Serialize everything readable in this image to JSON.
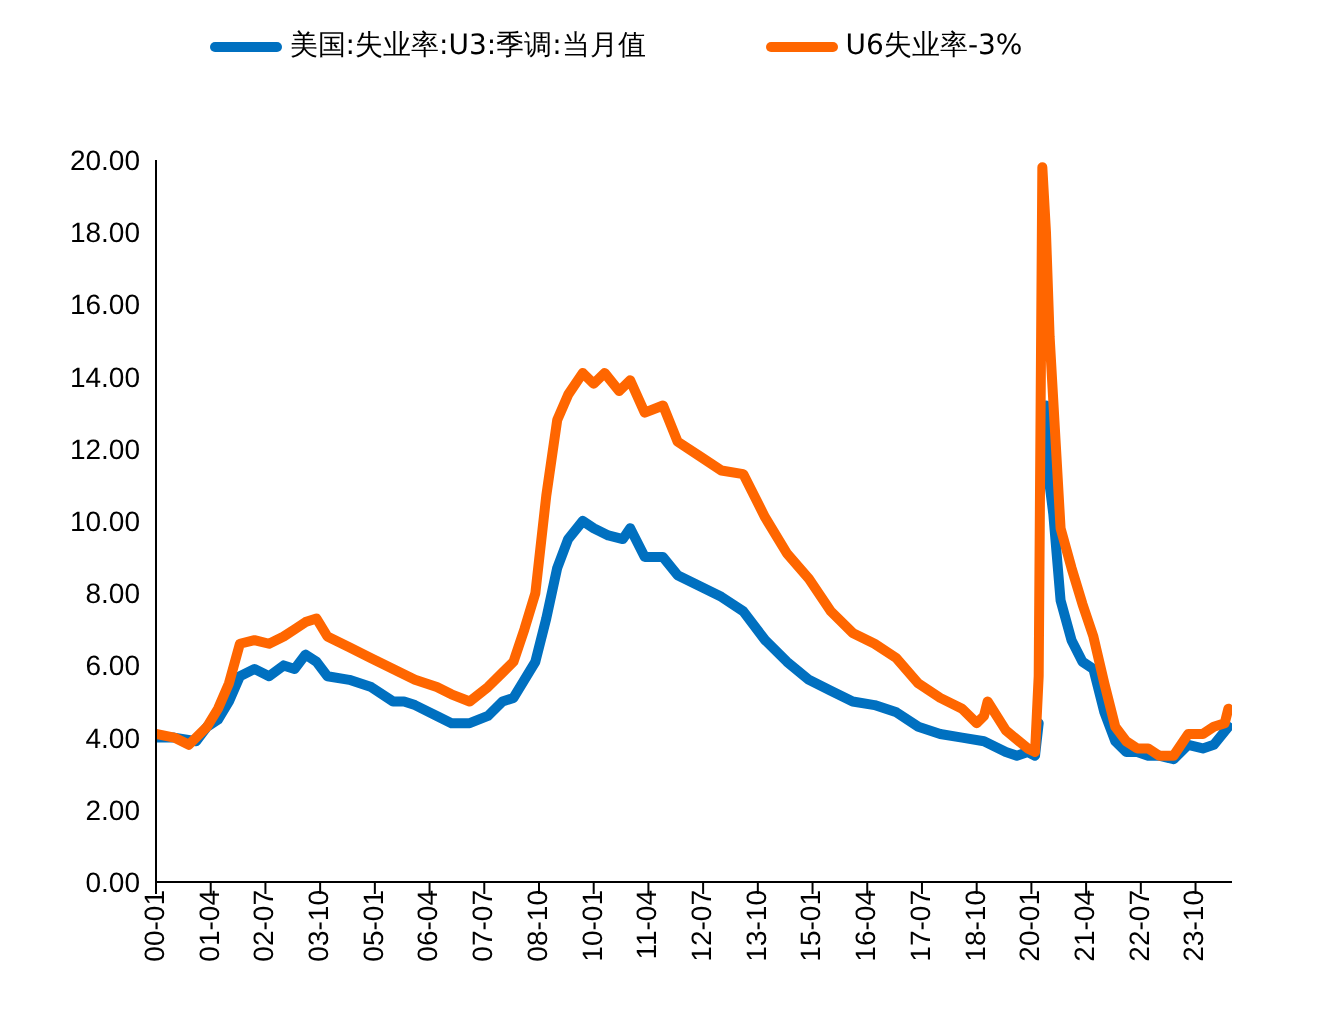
{
  "chart_data": {
    "type": "line",
    "legend": "top",
    "grid": false,
    "marker": "none",
    "line_style": "solid",
    "xlim": [
      "2000-01",
      "2024-08"
    ],
    "xticks": [
      {
        "value": "2000-01",
        "label": "00-01"
      },
      {
        "value": "2001-04",
        "label": "01-04"
      },
      {
        "value": "2002-07",
        "label": "02-07"
      },
      {
        "value": "2003-10",
        "label": "03-10"
      },
      {
        "value": "2005-01",
        "label": "05-01"
      },
      {
        "value": "2006-04",
        "label": "06-04"
      },
      {
        "value": "2007-07",
        "label": "07-07"
      },
      {
        "value": "2008-10",
        "label": "08-10"
      },
      {
        "value": "2010-01",
        "label": "10-01"
      },
      {
        "value": "2011-04",
        "label": "11-04"
      },
      {
        "value": "2012-07",
        "label": "12-07"
      },
      {
        "value": "2013-10",
        "label": "13-10"
      },
      {
        "value": "2015-01",
        "label": "15-01"
      },
      {
        "value": "2016-04",
        "label": "16-04"
      },
      {
        "value": "2017-07",
        "label": "17-07"
      },
      {
        "value": "2018-10",
        "label": "18-10"
      },
      {
        "value": "2020-01",
        "label": "20-01"
      },
      {
        "value": "2021-04",
        "label": "21-04"
      },
      {
        "value": "2022-07",
        "label": "22-07"
      },
      {
        "value": "2023-10",
        "label": "23-10"
      }
    ],
    "ylim": [
      0,
      20
    ],
    "yticks": [
      {
        "value": 0,
        "label": "0.00"
      },
      {
        "value": 2,
        "label": "2.00"
      },
      {
        "value": 4,
        "label": "4.00"
      },
      {
        "value": 6,
        "label": "6.00"
      },
      {
        "value": 8,
        "label": "8.00"
      },
      {
        "value": 10,
        "label": "10.00"
      },
      {
        "value": 12,
        "label": "12.00"
      },
      {
        "value": 14,
        "label": "14.00"
      },
      {
        "value": 16,
        "label": "16.00"
      },
      {
        "value": 18,
        "label": "18.00"
      },
      {
        "value": 20,
        "label": "20.00"
      }
    ],
    "series": [
      {
        "name": "美国:失业率:U3:季调:当月值",
        "color": "#0070c0",
        "x": [
          "2000-01",
          "2000-06",
          "2000-12",
          "2001-03",
          "2001-06",
          "2001-09",
          "2001-12",
          "2002-04",
          "2002-08",
          "2002-12",
          "2003-03",
          "2003-06",
          "2003-09",
          "2003-12",
          "2004-06",
          "2004-12",
          "2005-06",
          "2005-09",
          "2005-12",
          "2006-06",
          "2006-10",
          "2007-03",
          "2007-08",
          "2007-12",
          "2008-03",
          "2008-06",
          "2008-09",
          "2008-12",
          "2009-03",
          "2009-06",
          "2009-10",
          "2010-01",
          "2010-05",
          "2010-09",
          "2010-11",
          "2011-03",
          "2011-08",
          "2011-12",
          "2012-06",
          "2012-12",
          "2013-06",
          "2013-12",
          "2014-06",
          "2014-12",
          "2015-06",
          "2015-12",
          "2016-06",
          "2016-12",
          "2017-06",
          "2017-12",
          "2018-06",
          "2018-12",
          "2019-06",
          "2019-09",
          "2019-12",
          "2020-02",
          "2020-03",
          "2020-04",
          "2020-05",
          "2020-06",
          "2020-07",
          "2020-09",
          "2020-12",
          "2021-03",
          "2021-06",
          "2021-09",
          "2021-12",
          "2022-03",
          "2022-06",
          "2022-09",
          "2022-12",
          "2023-04",
          "2023-08",
          "2023-12",
          "2024-03",
          "2024-07"
        ],
        "values": [
          4.0,
          4.0,
          3.9,
          4.3,
          4.5,
          5.0,
          5.7,
          5.9,
          5.7,
          6.0,
          5.9,
          6.3,
          6.1,
          5.7,
          5.6,
          5.4,
          5.0,
          5.0,
          4.9,
          4.6,
          4.4,
          4.4,
          4.6,
          5.0,
          5.1,
          5.6,
          6.1,
          7.3,
          8.7,
          9.5,
          10.0,
          9.8,
          9.6,
          9.5,
          9.8,
          9.0,
          9.0,
          8.5,
          8.2,
          7.9,
          7.5,
          6.7,
          6.1,
          5.6,
          5.3,
          5.0,
          4.9,
          4.7,
          4.3,
          4.1,
          4.0,
          3.9,
          3.6,
          3.5,
          3.6,
          3.5,
          4.4,
          null,
          13.2,
          11.0,
          10.2,
          7.8,
          6.7,
          6.1,
          5.9,
          4.7,
          3.9,
          3.6,
          3.6,
          3.5,
          3.5,
          3.4,
          3.8,
          3.7,
          3.8,
          4.3
        ]
      },
      {
        "name": "U6失业率-3%",
        "color": "#ff6600",
        "x": [
          "2000-01",
          "2000-06",
          "2000-10",
          "2001-03",
          "2001-06",
          "2001-09",
          "2001-12",
          "2002-04",
          "2002-08",
          "2002-12",
          "2003-03",
          "2003-06",
          "2003-09",
          "2003-12",
          "2004-06",
          "2004-12",
          "2005-06",
          "2005-12",
          "2006-06",
          "2006-10",
          "2007-03",
          "2007-08",
          "2007-12",
          "2008-03",
          "2008-06",
          "2008-09",
          "2008-12",
          "2009-03",
          "2009-06",
          "2009-10",
          "2010-01",
          "2010-04",
          "2010-08",
          "2010-11",
          "2011-03",
          "2011-08",
          "2011-12",
          "2012-06",
          "2012-12",
          "2013-06",
          "2013-12",
          "2014-06",
          "2014-12",
          "2015-06",
          "2015-12",
          "2016-06",
          "2016-12",
          "2017-06",
          "2017-12",
          "2018-06",
          "2018-10",
          "2018-12",
          "2019-01",
          "2019-06",
          "2019-12",
          "2020-02",
          "2020-03",
          "2020-04",
          "2020-05",
          "2020-06",
          "2020-09",
          "2020-12",
          "2021-03",
          "2021-06",
          "2021-09",
          "2021-12",
          "2022-03",
          "2022-06",
          "2022-09",
          "2022-12",
          "2023-04",
          "2023-08",
          "2023-12",
          "2024-03",
          "2024-06",
          "2024-07"
        ],
        "values": [
          4.1,
          4.0,
          3.8,
          4.3,
          4.8,
          5.5,
          6.6,
          6.7,
          6.6,
          6.8,
          7.0,
          7.2,
          7.3,
          6.8,
          6.5,
          6.2,
          5.9,
          5.6,
          5.4,
          5.2,
          5.0,
          5.4,
          5.8,
          6.1,
          7.0,
          8.0,
          10.7,
          12.8,
          13.5,
          14.1,
          13.8,
          14.1,
          13.6,
          13.9,
          13.0,
          13.2,
          12.2,
          11.8,
          11.4,
          11.3,
          10.1,
          9.1,
          8.4,
          7.5,
          6.9,
          6.6,
          6.2,
          5.5,
          5.1,
          4.8,
          4.4,
          4.6,
          5.0,
          4.2,
          3.7,
          3.6,
          5.7,
          19.8,
          18.0,
          15.1,
          9.8,
          8.7,
          7.7,
          6.8,
          5.5,
          4.3,
          3.9,
          3.7,
          3.7,
          3.5,
          3.5,
          4.1,
          4.1,
          4.3,
          4.4,
          4.8
        ]
      }
    ]
  }
}
